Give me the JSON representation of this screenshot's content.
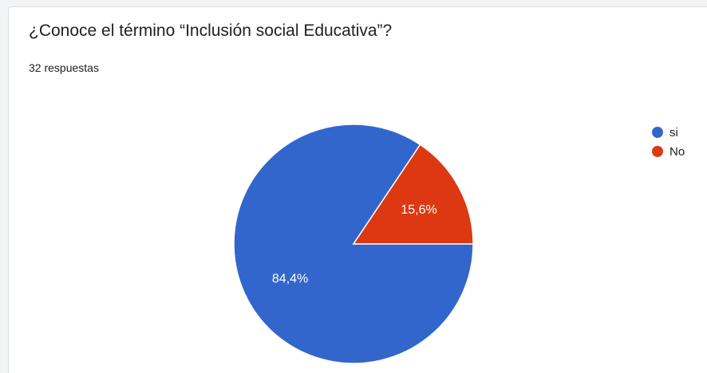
{
  "question": {
    "title": "¿Conoce el término “Inclusión social Educativa”?",
    "responses": "32 respuestas"
  },
  "chart_data": {
    "type": "pie",
    "title": "¿Conoce el término “Inclusión social Educativa”?",
    "total_responses": 32,
    "slices": [
      {
        "label": "si",
        "value": 84.4,
        "display": "84,4%",
        "color": "#3366cc"
      },
      {
        "label": "No",
        "value": 15.6,
        "display": "15,6%",
        "color": "#dc3912"
      }
    ],
    "legend_position": "top-right"
  }
}
